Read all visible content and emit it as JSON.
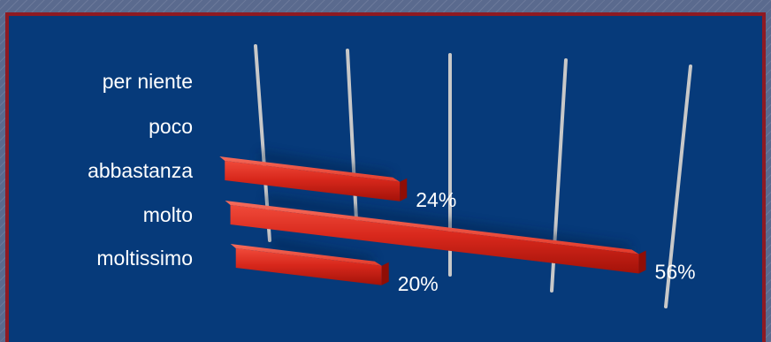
{
  "chart_data": {
    "type": "bar",
    "orientation": "horizontal",
    "categories": [
      "per niente",
      "poco",
      "abbastanza",
      "molto",
      "moltissimo"
    ],
    "values": [
      0,
      0,
      24,
      56,
      20
    ],
    "value_labels": [
      "",
      "",
      "24%",
      "56%",
      "20%"
    ],
    "xlim": [
      0,
      56
    ],
    "grid": true,
    "style": "3d",
    "colors": {
      "bar": "#d8281c",
      "background": "#063a7a",
      "border": "#8e1a22",
      "grid": "#c8c8c8"
    }
  }
}
